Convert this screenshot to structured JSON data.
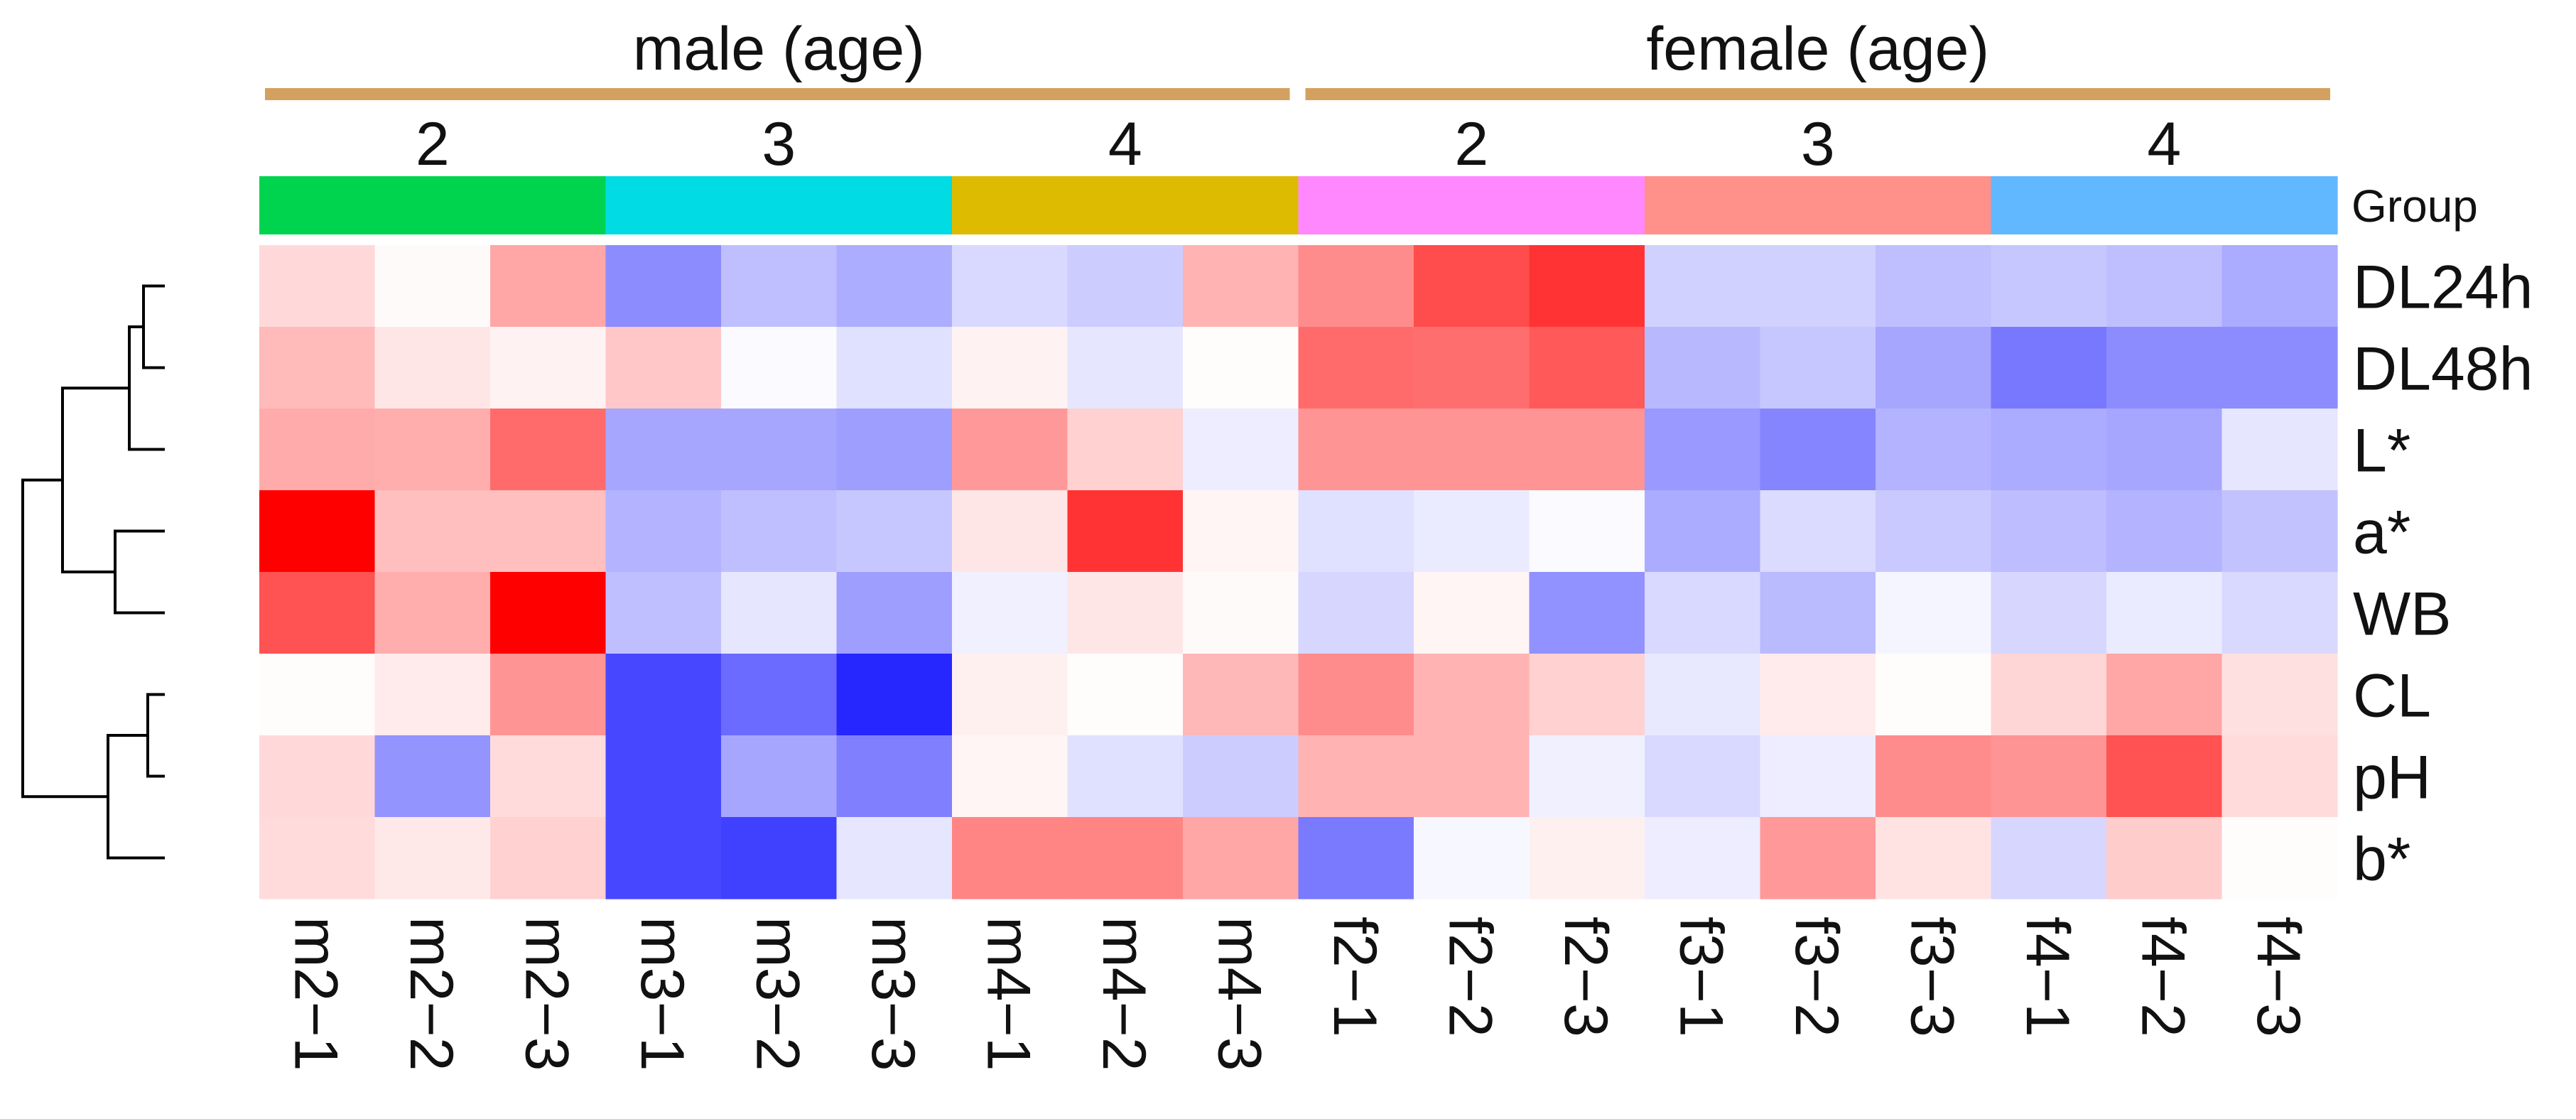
{
  "chart_data": {
    "type": "heatmap",
    "title": "",
    "top_groups": [
      {
        "label": "male (age)",
        "ages": [
          "2",
          "3",
          "4"
        ]
      },
      {
        "label": "female (age)",
        "ages": [
          "2",
          "3",
          "4"
        ]
      }
    ],
    "group_legend_label": "Group",
    "group_colors": [
      "#00d44f",
      "#00dbe4",
      "#ddbb00",
      "#ff88ff",
      "#ff918a",
      "#62b8ff"
    ],
    "bracket_color": "#d4a060",
    "columns": [
      "m2−1",
      "m2−2",
      "m2−3",
      "m3−1",
      "m3−2",
      "m3−3",
      "m4−1",
      "m4−2",
      "m4−3",
      "f2−1",
      "f2−2",
      "f2−3",
      "f3−1",
      "f3−2",
      "f3−3",
      "f4−1",
      "f4−2",
      "f4−3"
    ],
    "rows": [
      "DL24h",
      "DL48h",
      "L*",
      "a*",
      "WB",
      "CL",
      "pH",
      "b*"
    ],
    "color_scale": {
      "low": "#0000ff",
      "mid": "#ffffff",
      "high": "#ff0000",
      "range": [
        -1,
        1
      ]
    },
    "values": [
      [
        0.15,
        0.02,
        0.35,
        -0.45,
        -0.25,
        -0.32,
        -0.15,
        -0.2,
        0.3,
        0.45,
        0.7,
        0.8,
        -0.18,
        -0.18,
        -0.25,
        -0.22,
        -0.25,
        -0.33
      ],
      [
        0.27,
        0.1,
        0.05,
        0.22,
        -0.02,
        -0.12,
        0.05,
        -0.1,
        0.01,
        0.58,
        0.57,
        0.65,
        -0.28,
        -0.22,
        -0.35,
        -0.53,
        -0.45,
        -0.45
      ],
      [
        0.33,
        0.32,
        0.58,
        -0.35,
        -0.35,
        -0.38,
        0.4,
        0.18,
        -0.07,
        0.42,
        0.42,
        0.42,
        -0.4,
        -0.48,
        -0.3,
        -0.33,
        -0.35,
        -0.1
      ],
      [
        1.0,
        0.25,
        0.25,
        -0.3,
        -0.25,
        -0.22,
        0.1,
        0.8,
        0.04,
        -0.12,
        -0.08,
        -0.02,
        -0.33,
        -0.14,
        -0.21,
        -0.26,
        -0.3,
        -0.24
      ],
      [
        0.68,
        0.32,
        1.0,
        -0.25,
        -0.1,
        -0.38,
        -0.06,
        0.1,
        0.02,
        -0.16,
        0.04,
        -0.43,
        -0.15,
        -0.27,
        -0.04,
        -0.16,
        -0.08,
        -0.15
      ],
      [
        0.01,
        0.08,
        0.42,
        -0.72,
        -0.58,
        -0.85,
        0.06,
        0.01,
        0.28,
        0.45,
        0.3,
        0.18,
        -0.09,
        0.08,
        0.01,
        0.16,
        0.35,
        0.12
      ],
      [
        0.15,
        -0.42,
        0.14,
        -0.72,
        -0.35,
        -0.5,
        0.04,
        -0.12,
        -0.2,
        0.3,
        0.3,
        -0.06,
        -0.15,
        -0.07,
        0.45,
        0.42,
        0.68,
        0.14
      ],
      [
        0.14,
        0.09,
        0.18,
        -0.72,
        -0.75,
        -0.1,
        0.48,
        0.48,
        0.35,
        -0.52,
        -0.03,
        0.06,
        -0.07,
        0.4,
        0.11,
        -0.16,
        0.2,
        0.01
      ]
    ],
    "row_dendrogram": [
      {
        "rows": [
          0,
          1
        ],
        "height": 0.15
      },
      {
        "rows": [
          3,
          4
        ],
        "height": 0.35
      },
      {
        "rows": [
          5,
          6
        ],
        "height": 0.12
      },
      {
        "rows": [
          2,
          "0+1"
        ],
        "height": 0.25
      },
      {
        "rows": [
          "5+6",
          7
        ],
        "height": 0.4
      },
      {
        "rows": [
          "2+0+1",
          "3+4"
        ],
        "height": 0.72
      },
      {
        "rows": [
          "2+0+1+3+4",
          "5+6+7"
        ],
        "height": 1.0
      }
    ]
  }
}
